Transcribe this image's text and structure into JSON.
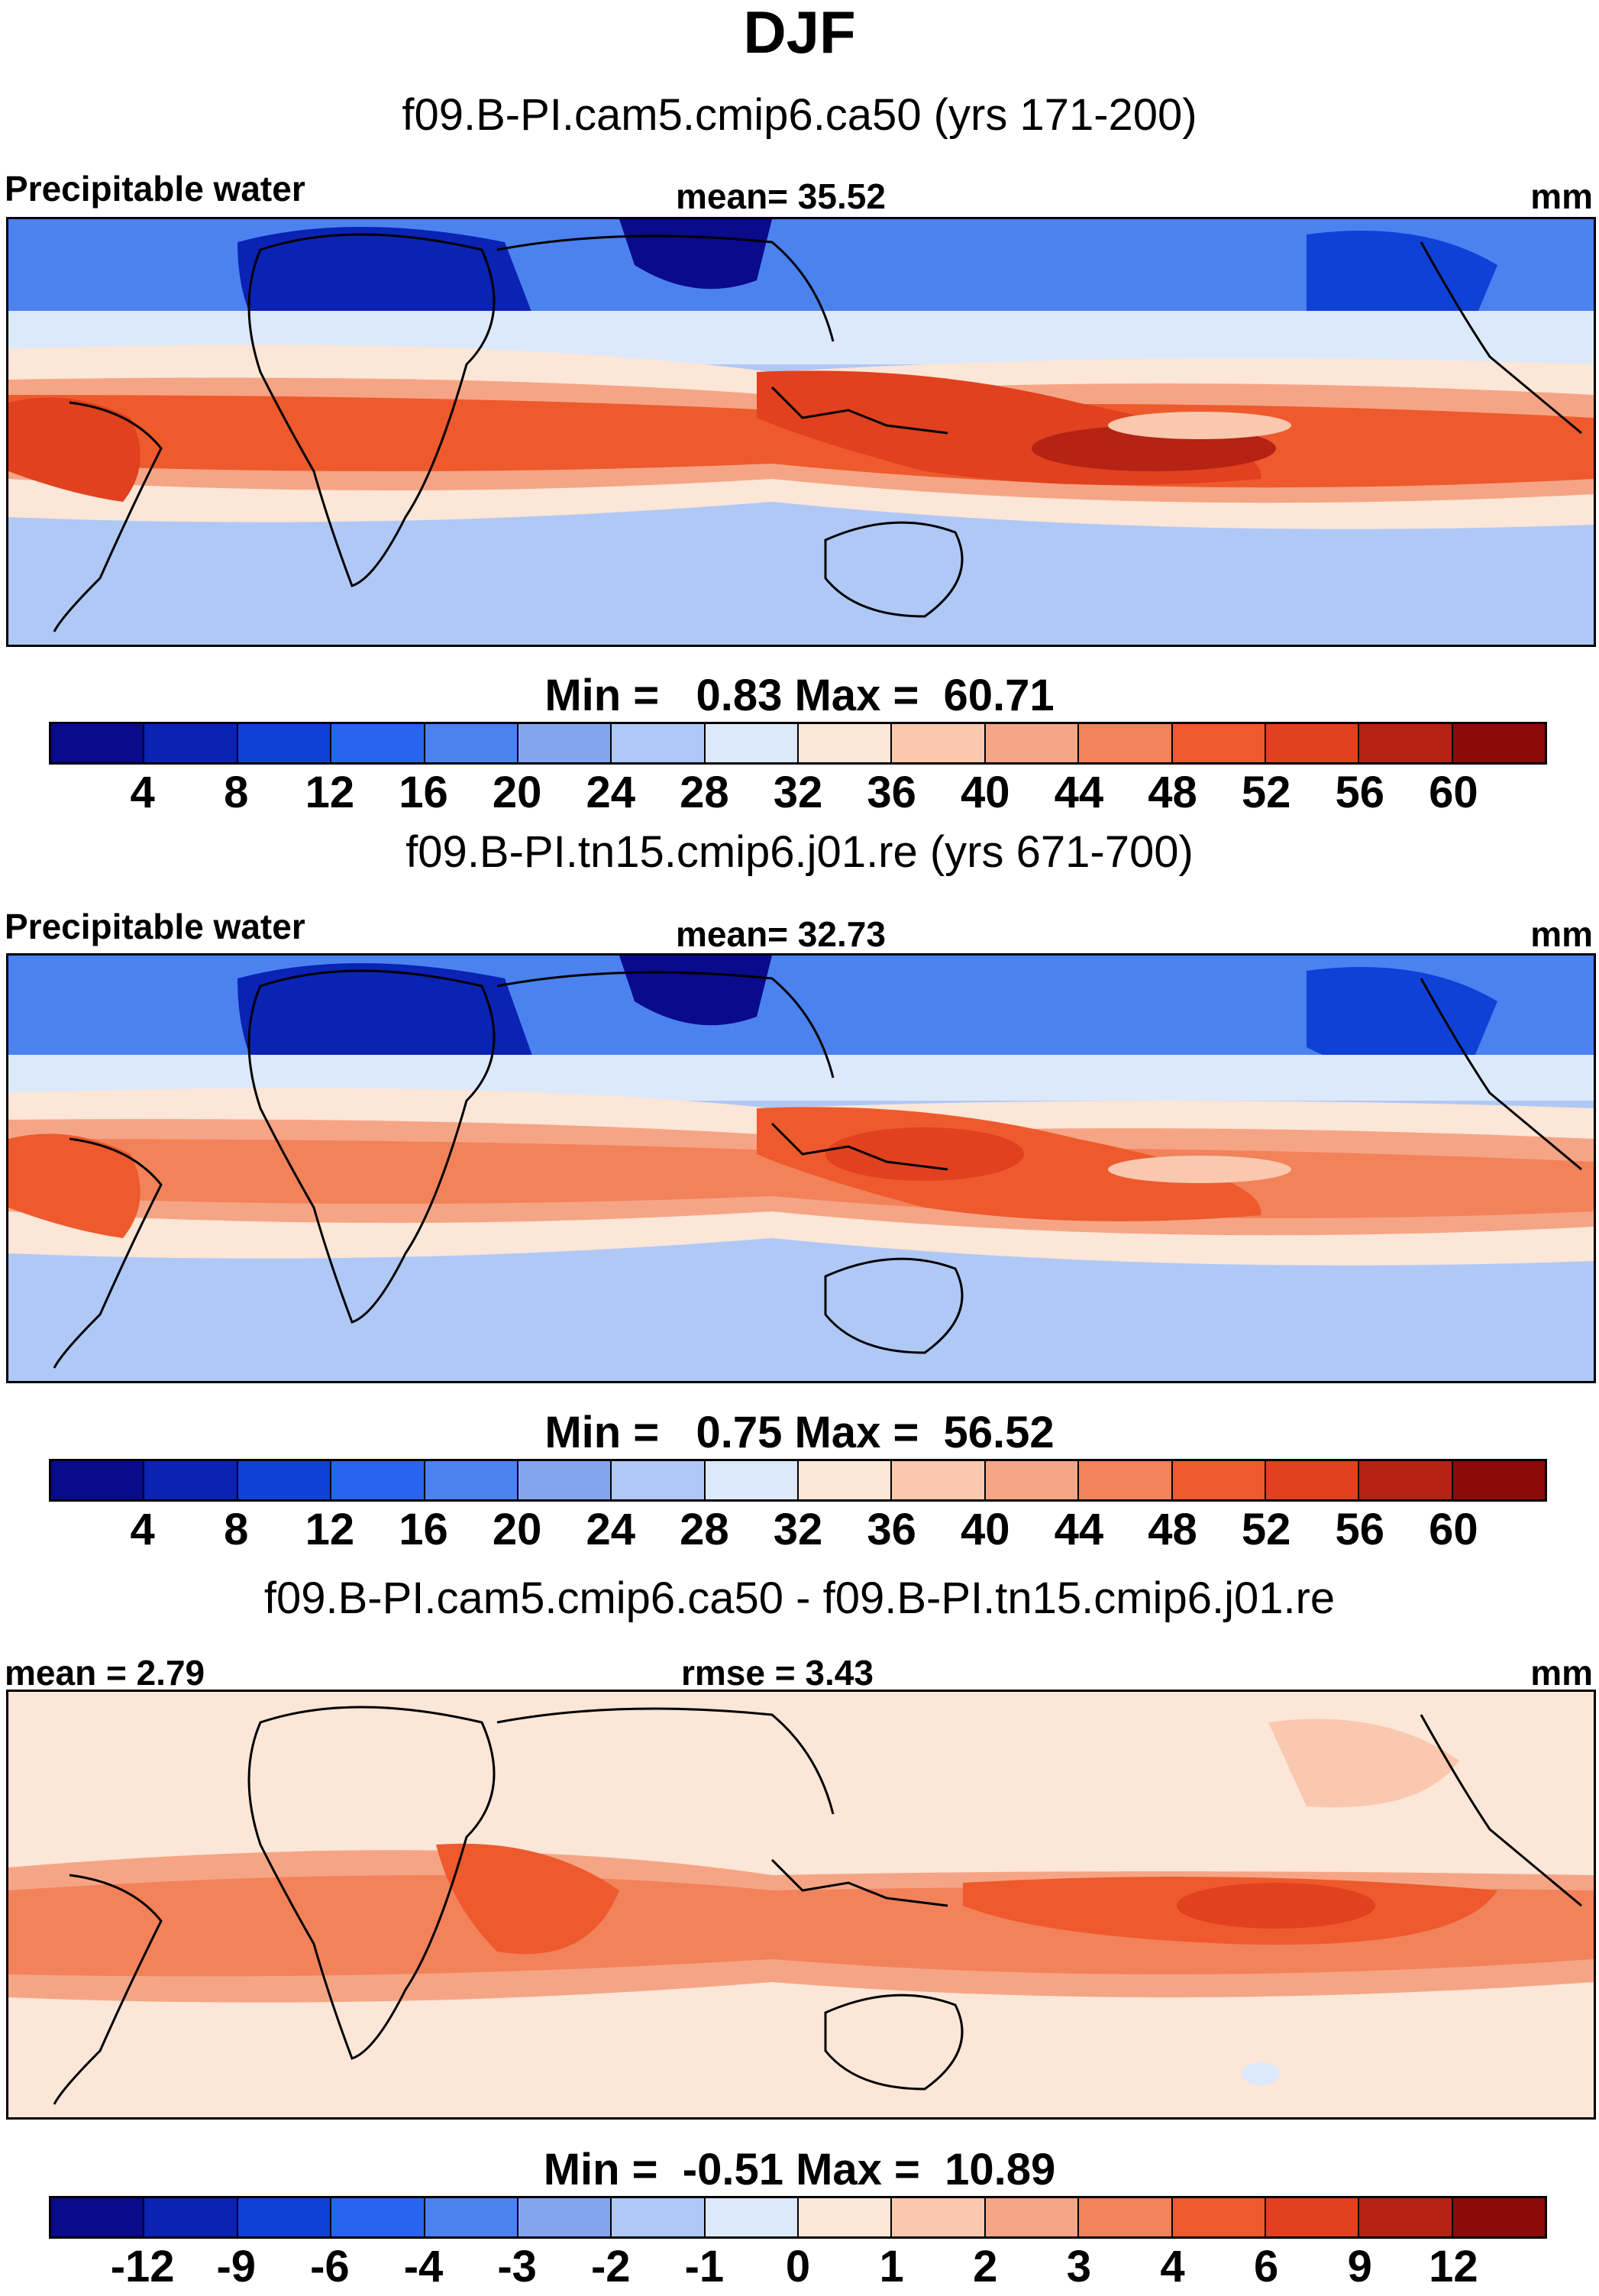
{
  "figure": {
    "title": "DJF",
    "units": "mm",
    "variable_label": "Precipitable water"
  },
  "colors": {
    "abs_scale": [
      "#0a0a8c",
      "#0a23b4",
      "#0f41d7",
      "#2864f0",
      "#4b82f0",
      "#82a5ee",
      "#afc8f5",
      "#dce9fa",
      "#fbe6d7",
      "#f9c8af",
      "#f5a585",
      "#f2825a",
      "#ee5a2d",
      "#e1411e",
      "#b42314",
      "#8c0a0a"
    ],
    "diff_scale": [
      "#0a0a8c",
      "#0a23b4",
      "#0f41d7",
      "#2864f0",
      "#4b82f0",
      "#82a5ee",
      "#afc8f5",
      "#dce9fa",
      "#fbe6d7",
      "#f9c8af",
      "#f5a585",
      "#f2825a",
      "#ee5a2d",
      "#e1411e",
      "#b42314",
      "#8c0a0a"
    ],
    "continent_outline": "#000000"
  },
  "panels": [
    {
      "case_title": "f09.B-PI.cam5.cmip6.ca50 (yrs 171-200)",
      "left_label": "Precipitable water",
      "center_label": "mean=  35.52",
      "right_label": "mm",
      "minmax": "Min =   0.83 Max =  60.71",
      "colorbar_ticks": [
        "4",
        "8",
        "12",
        "16",
        "20",
        "24",
        "28",
        "32",
        "36",
        "40",
        "44",
        "48",
        "52",
        "56",
        "60"
      ],
      "map_name": "precipitable-water-map-ca50"
    },
    {
      "case_title": "f09.B-PI.tn15.cmip6.j01.re (yrs 671-700)",
      "left_label": "Precipitable water",
      "center_label": "mean=  32.73",
      "right_label": "mm",
      "minmax": "Min =   0.75 Max =  56.52",
      "colorbar_ticks": [
        "4",
        "8",
        "12",
        "16",
        "20",
        "24",
        "28",
        "32",
        "36",
        "40",
        "44",
        "48",
        "52",
        "56",
        "60"
      ],
      "map_name": "precipitable-water-map-j01"
    },
    {
      "case_title": "f09.B-PI.cam5.cmip6.ca50 - f09.B-PI.tn15.cmip6.j01.re",
      "left_label": "mean =   2.79",
      "center_label": "rmse =   3.43",
      "right_label": "mm",
      "minmax": "Min =  -0.51 Max =  10.89",
      "colorbar_ticks": [
        "-12",
        "-9",
        "-6",
        "-4",
        "-3",
        "-2",
        "-1",
        "0",
        "1",
        "2",
        "3",
        "4",
        "6",
        "9",
        "12"
      ],
      "map_name": "precipitable-water-difference-map"
    }
  ]
}
